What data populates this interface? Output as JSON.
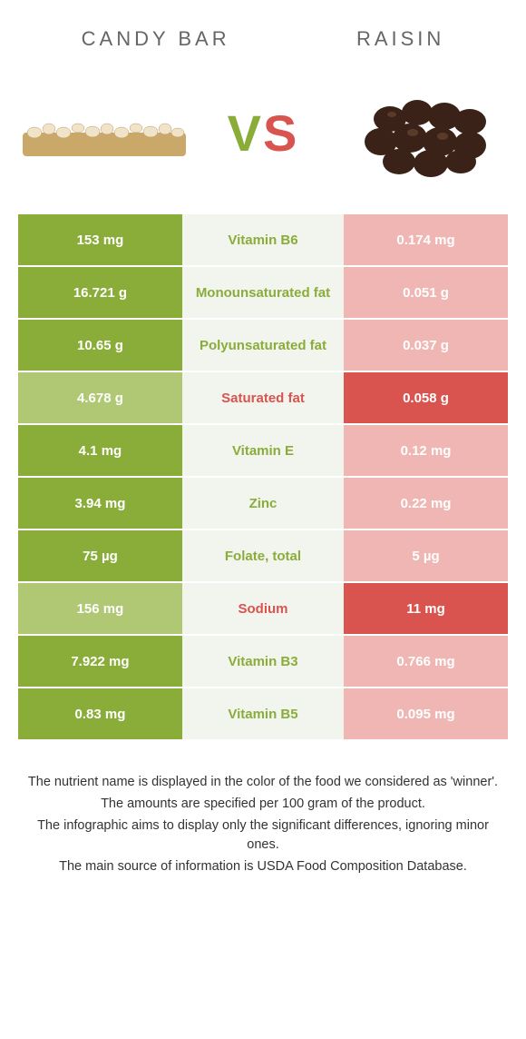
{
  "colors": {
    "winner_left": "#8aad3a",
    "winner_right": "#d9534f",
    "left_normal": "#b0c774",
    "right_normal": "#efb6b3",
    "mid_bg": "#f2f4ee",
    "title_text": "#666666",
    "body_text": "#333333"
  },
  "header": {
    "left_title": "Candy bar",
    "right_title": "Raisin",
    "vs_v": "V",
    "vs_s": "S"
  },
  "table": {
    "rows": [
      {
        "left": "153 mg",
        "label": "Vitamin B6",
        "right": "0.174 mg",
        "winner": "left"
      },
      {
        "left": "16.721 g",
        "label": "Monounsaturated fat",
        "right": "0.051 g",
        "winner": "left"
      },
      {
        "left": "10.65 g",
        "label": "Polyunsaturated fat",
        "right": "0.037 g",
        "winner": "left"
      },
      {
        "left": "4.678 g",
        "label": "Saturated fat",
        "right": "0.058 g",
        "winner": "right"
      },
      {
        "left": "4.1 mg",
        "label": "Vitamin E",
        "right": "0.12 mg",
        "winner": "left"
      },
      {
        "left": "3.94 mg",
        "label": "Zinc",
        "right": "0.22 mg",
        "winner": "left"
      },
      {
        "left": "75 µg",
        "label": "Folate, total",
        "right": "5 µg",
        "winner": "left"
      },
      {
        "left": "156 mg",
        "label": "Sodium",
        "right": "11 mg",
        "winner": "right"
      },
      {
        "left": "7.922 mg",
        "label": "Vitamin B3",
        "right": "0.766 mg",
        "winner": "left"
      },
      {
        "left": "0.83 mg",
        "label": "Vitamin B5",
        "right": "0.095 mg",
        "winner": "left"
      }
    ]
  },
  "footer": {
    "lines": [
      "The nutrient name is displayed in the color of the food we considered as 'winner'.",
      "The amounts are specified per 100 gram of the product.",
      "The infographic aims to display only the significant differences, ignoring minor ones.",
      "The main source of information is USDA Food Composition Database."
    ]
  }
}
